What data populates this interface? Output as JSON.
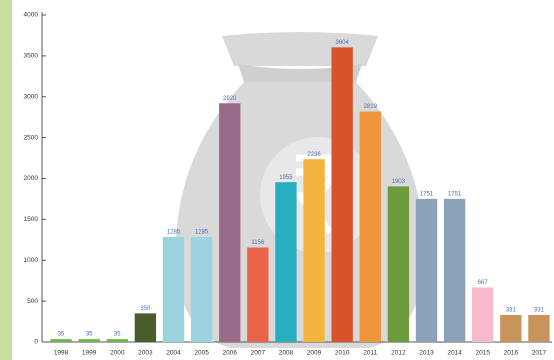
{
  "chart_data": {
    "type": "bar",
    "categories": [
      "1998",
      "1999",
      "2000",
      "2003",
      "2004",
      "2005",
      "2006",
      "2007",
      "2008",
      "2009",
      "2010",
      "2011",
      "2012",
      "2013",
      "2014",
      "2015",
      "2016",
      "2017"
    ],
    "values": [
      35,
      35,
      35,
      350,
      1285,
      1285,
      2920,
      1156,
      1955,
      2236,
      3604,
      2819,
      1903,
      1751,
      1751,
      667,
      331,
      331
    ],
    "colors": [
      "#6db34e",
      "#6db34e",
      "#6db34e",
      "#4b5d2c",
      "#9dd3df",
      "#9dd3df",
      "#9a6b88",
      "#e8634a",
      "#27afc0",
      "#f3b540",
      "#d8532b",
      "#ef953a",
      "#6d9a3a",
      "#8aa3b9",
      "#8aa3b9",
      "#f7bacb",
      "#c7955b",
      "#c7955b"
    ],
    "ylim": [
      0,
      4000
    ],
    "yticks": [
      0,
      500,
      1000,
      1500,
      2000,
      2500,
      3000,
      3500,
      4000
    ],
    "grid": false
  }
}
